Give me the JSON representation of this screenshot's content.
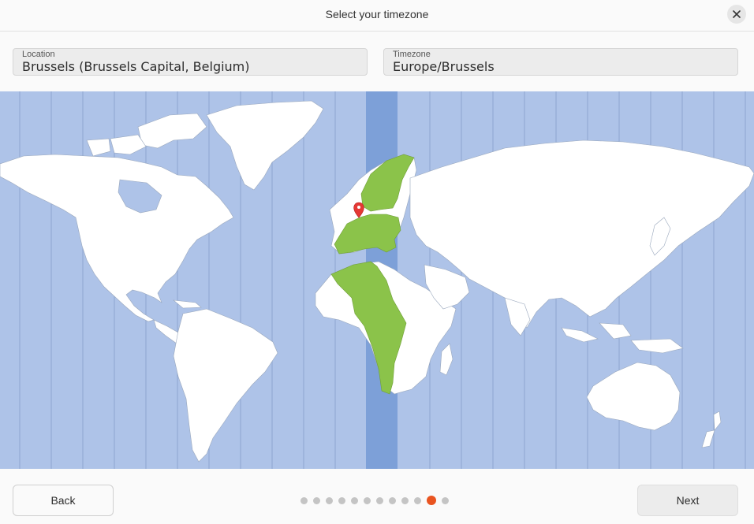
{
  "window": {
    "title": "Select your timezone"
  },
  "location": {
    "label": "Location",
    "value": "Brussels (Brussels Capital, Belgium)"
  },
  "timezone": {
    "label": "Timezone",
    "value": "Europe/Brussels"
  },
  "footer": {
    "back_label": "Back",
    "next_label": "Next"
  },
  "progress": {
    "total_steps": 12,
    "current_step": 11
  },
  "colors": {
    "ocean": "#aec3e8",
    "selected_zone": "#7da0d8",
    "selected_region": "#8bc34a",
    "land": "#ffffff",
    "pin": "#e53935",
    "accent": "#e95420"
  }
}
